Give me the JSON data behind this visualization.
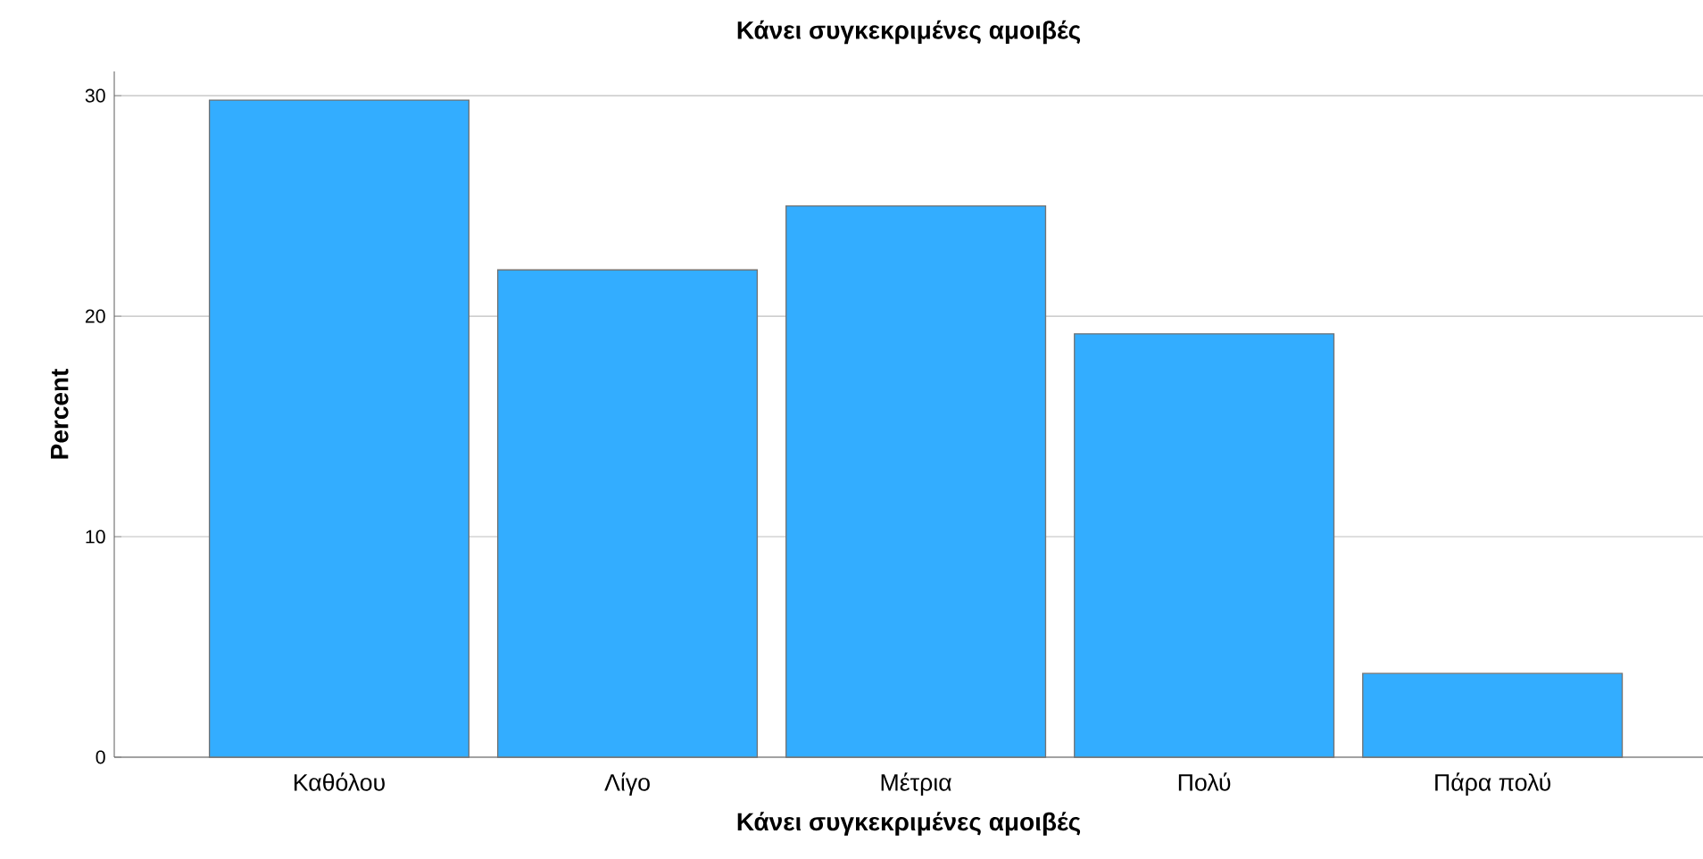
{
  "chart_data": {
    "type": "bar",
    "title": "Κάνει συγκεκριμένες αμοιβές",
    "xlabel": "Κάνει συγκεκριμένες αμοιβές",
    "ylabel": "Percent",
    "categories": [
      "Καθόλου",
      "Λίγο",
      "Μέτρια",
      "Πολύ",
      "Πάρα πολύ"
    ],
    "values": [
      29.8,
      22.1,
      25.0,
      19.2,
      3.8
    ],
    "color": "#33adff",
    "ylim": [
      0,
      31.1
    ],
    "yticks": [
      0,
      10,
      20,
      30
    ],
    "grid": "y"
  }
}
